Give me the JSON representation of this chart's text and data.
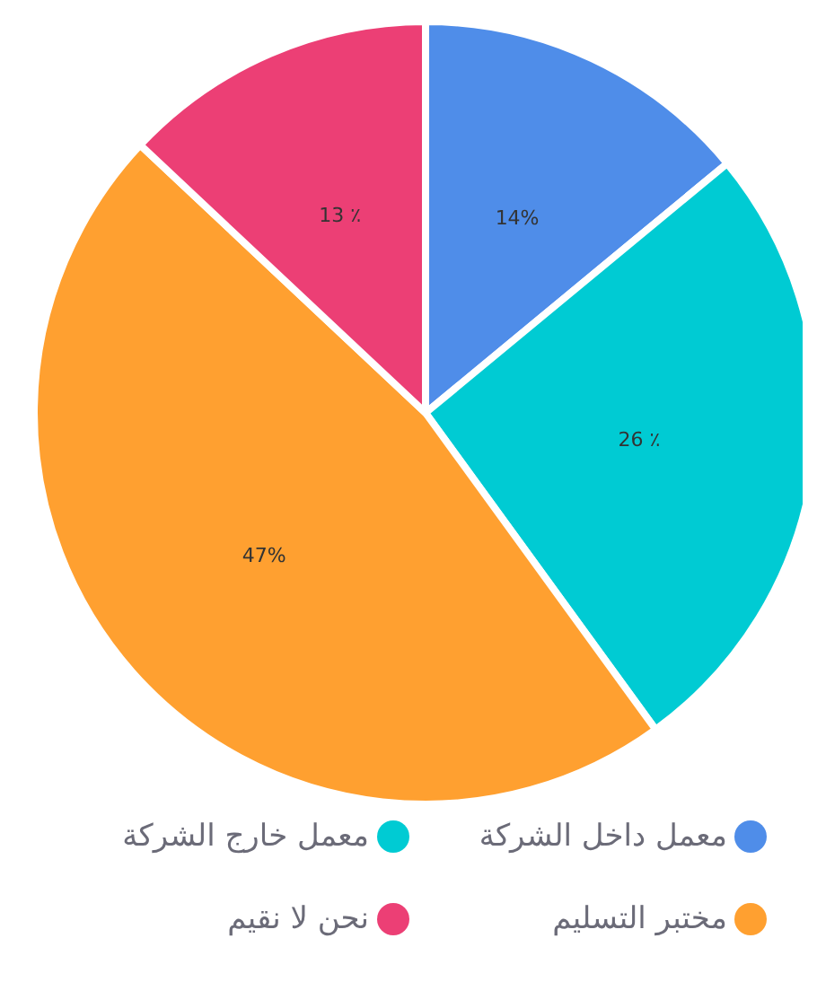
{
  "chart_data": {
    "type": "pie",
    "categories": [
      "معمل داخل الشركة",
      "معمل خارج الشركة",
      "مختبر التسليم",
      "نحن لا نقيم"
    ],
    "values": [
      14,
      26,
      47,
      13
    ],
    "colors": [
      "#4f8de9",
      "#00cbd3",
      "#ffa030",
      "#ec3f75"
    ],
    "value_labels": [
      "14%",
      "26 ٪",
      "47%",
      "13 ٪"
    ],
    "legend": "bottom"
  }
}
